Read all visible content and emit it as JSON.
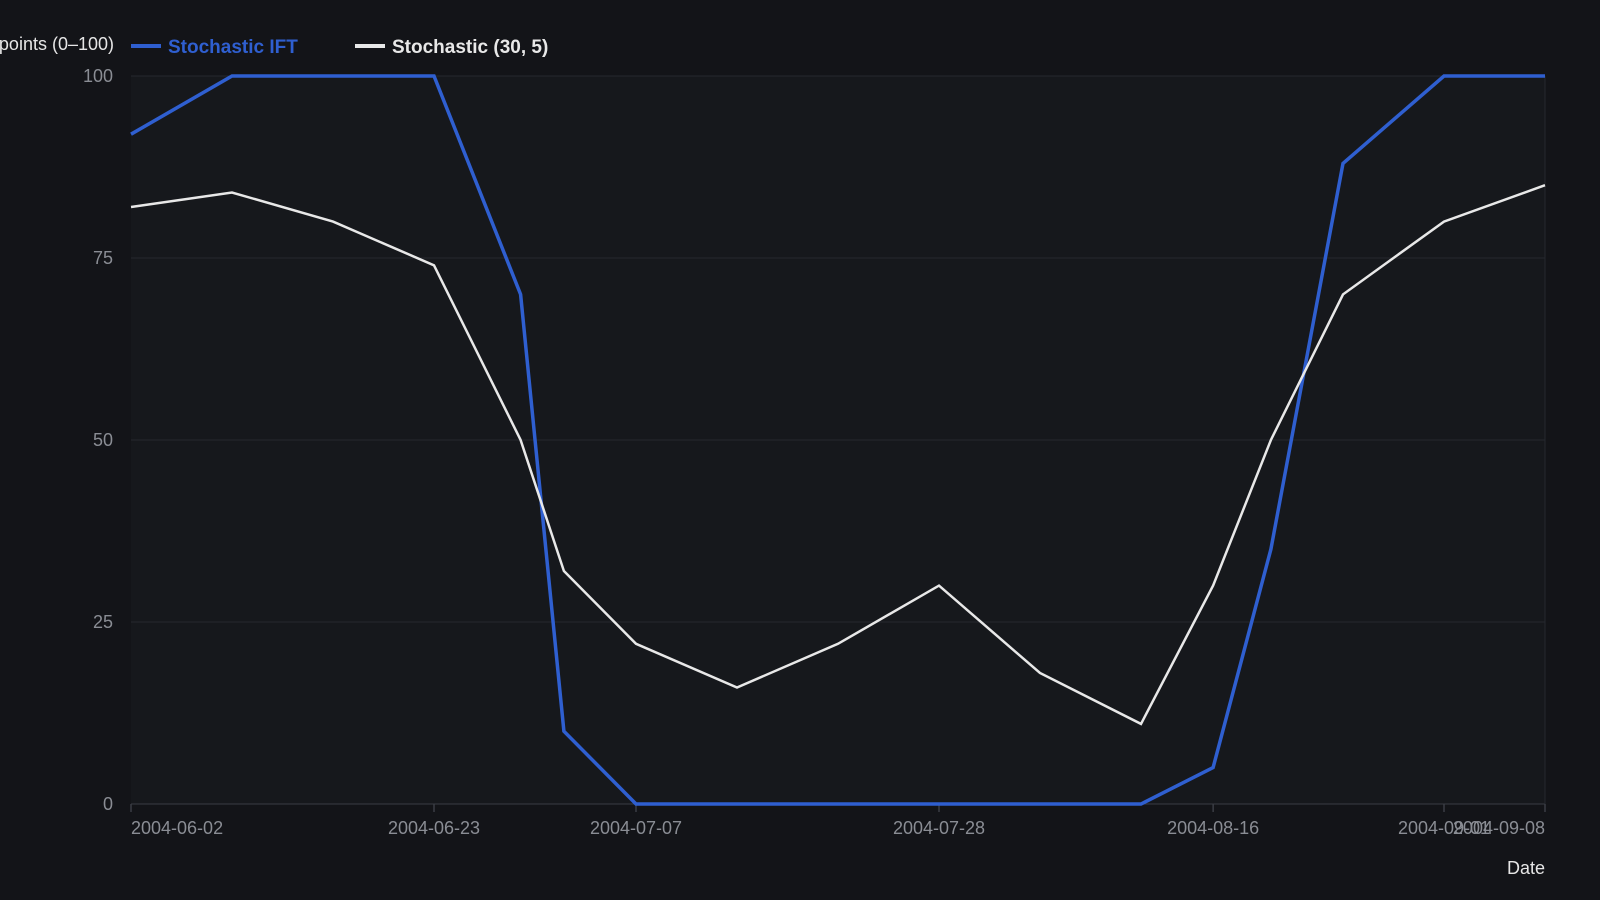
{
  "colors": {
    "background": "#131418",
    "plot_background": "#16181c",
    "grid": "#25282e",
    "axis": "#3a3d44",
    "tick_text": "#8a8d94",
    "ift": "#2f5fd0",
    "stoch": "#e8e8e8"
  },
  "chart_data": {
    "type": "line",
    "xlabel": "Date",
    "ylabel": "points (0–100)",
    "ylim": [
      0,
      100
    ],
    "yticks": [
      0,
      25,
      50,
      75,
      100
    ],
    "xticks": [
      "2004-06-02",
      "2004-06-23",
      "2004-07-07",
      "2004-07-28",
      "2004-08-16",
      "2004-09-01",
      "2004-09-08"
    ],
    "x_range": [
      "2004-06-02",
      "2004-09-08"
    ],
    "grid": true,
    "legend_position": "top-left",
    "series": [
      {
        "name": "Stochastic IFT",
        "color": "#2f5fd0",
        "points": [
          [
            "2004-06-02",
            92
          ],
          [
            "2004-06-09",
            100
          ],
          [
            "2004-06-16",
            100
          ],
          [
            "2004-06-23",
            100
          ],
          [
            "2004-06-29",
            70
          ],
          [
            "2004-07-02",
            10
          ],
          [
            "2004-07-07",
            0
          ],
          [
            "2004-07-14",
            0
          ],
          [
            "2004-07-21",
            0
          ],
          [
            "2004-07-28",
            0
          ],
          [
            "2004-08-04",
            0
          ],
          [
            "2004-08-11",
            0
          ],
          [
            "2004-08-16",
            5
          ],
          [
            "2004-08-20",
            35
          ],
          [
            "2004-08-25",
            88
          ],
          [
            "2004-09-01",
            100
          ],
          [
            "2004-09-08",
            100
          ]
        ]
      },
      {
        "name": "Stochastic (30, 5)",
        "color": "#e8e8e8",
        "points": [
          [
            "2004-06-02",
            82
          ],
          [
            "2004-06-09",
            84
          ],
          [
            "2004-06-16",
            80
          ],
          [
            "2004-06-23",
            74
          ],
          [
            "2004-06-29",
            50
          ],
          [
            "2004-07-02",
            32
          ],
          [
            "2004-07-07",
            22
          ],
          [
            "2004-07-14",
            16
          ],
          [
            "2004-07-21",
            22
          ],
          [
            "2004-07-28",
            30
          ],
          [
            "2004-08-04",
            18
          ],
          [
            "2004-08-11",
            11
          ],
          [
            "2004-08-16",
            30
          ],
          [
            "2004-08-20",
            50
          ],
          [
            "2004-08-25",
            70
          ],
          [
            "2004-09-01",
            80
          ],
          [
            "2004-09-08",
            85
          ]
        ]
      }
    ]
  }
}
